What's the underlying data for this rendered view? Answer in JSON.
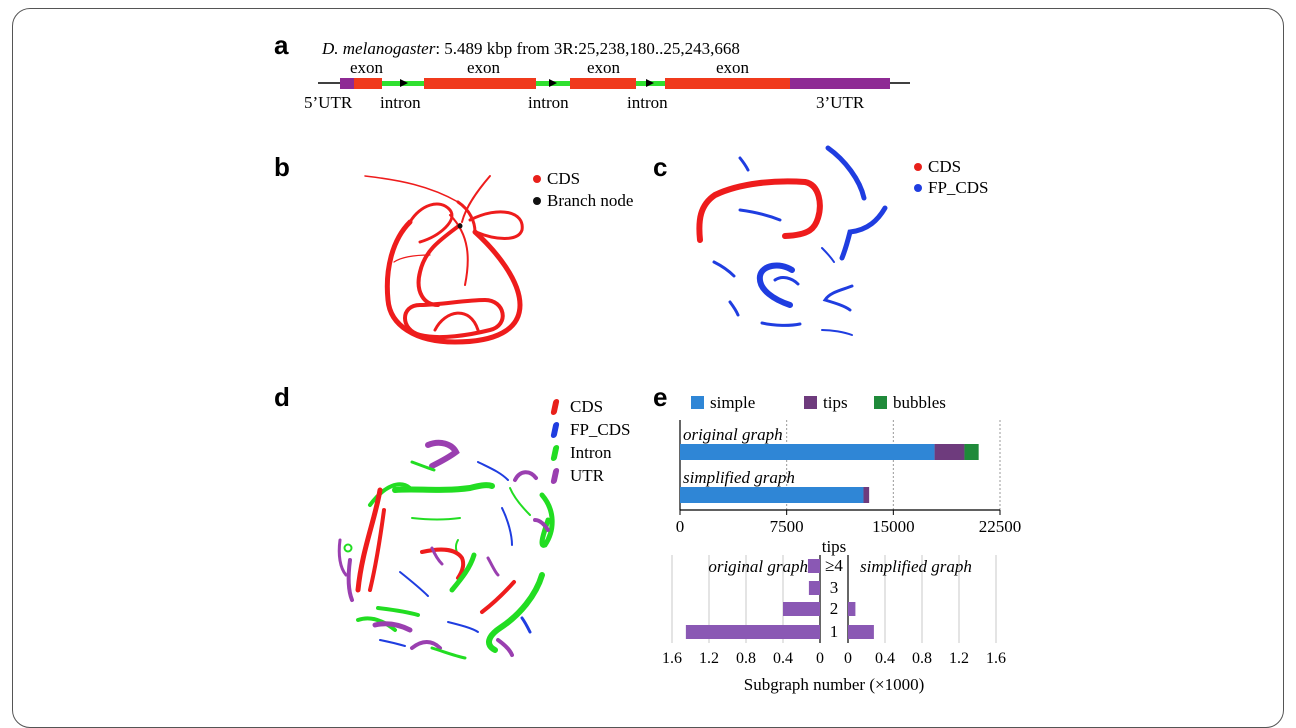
{
  "panels": {
    "a": "a",
    "b": "b",
    "c": "c",
    "d": "d",
    "e": "e"
  },
  "gene": {
    "species": "D. melanogaster",
    "info": ": 5.489 kbp from 3R:25,238,180..25,243,668",
    "exon_label": "exon",
    "intron_label": "intron",
    "utr5_label": "5’UTR",
    "utr3_label": "3’UTR"
  },
  "legend_b": [
    {
      "label": "CDS",
      "color": "#e8201a"
    },
    {
      "label": "Branch node",
      "color": "#111111"
    }
  ],
  "legend_c": [
    {
      "label": "CDS",
      "color": "#e8201a"
    },
    {
      "label": "FP_CDS",
      "color": "#1f3de0"
    }
  ],
  "legend_d": [
    {
      "label": "CDS",
      "color": "#e8201a"
    },
    {
      "label": "FP_CDS",
      "color": "#1f3de0"
    },
    {
      "label": "Intron",
      "color": "#22dd22"
    },
    {
      "label": "UTR",
      "color": "#9a3fb0"
    }
  ],
  "colors": {
    "exon": "#f03a1c",
    "utr": "#8e2a94",
    "intron": "#2fe02f",
    "simple": "#2f86d6",
    "tips": "#6e3b7d",
    "bubbles": "#1f8a3a",
    "tipbar": "#8a58b4"
  },
  "chart_data": [
    {
      "type": "bar",
      "orientation": "horizontal",
      "stacked": true,
      "legend": [
        "simple",
        "tips",
        "bubbles"
      ],
      "categories": [
        "original graph",
        "simplified graph"
      ],
      "series": [
        {
          "name": "simple",
          "values": [
            17900,
            12900
          ]
        },
        {
          "name": "tips",
          "values": [
            2100,
            400
          ]
        },
        {
          "name": "bubbles",
          "values": [
            1000,
            0
          ]
        }
      ],
      "ticks": [
        "0",
        "7500",
        "15000",
        "22500"
      ],
      "xlim": [
        0,
        22500
      ],
      "grid": true
    },
    {
      "type": "bar",
      "orientation": "horizontal",
      "subtitle": "tips",
      "xlabel": "Subgraph number (×1000)",
      "categories": [
        "≥4",
        "3",
        "2",
        "1"
      ],
      "left_title": "original graph",
      "right_title": "simplified graph",
      "series": [
        {
          "name": "original graph",
          "values": [
            0.13,
            0.12,
            0.4,
            1.45
          ]
        },
        {
          "name": "simplified graph",
          "values": [
            0.0,
            0.0,
            0.08,
            0.28
          ]
        }
      ],
      "ticks_left": [
        "1.6",
        "1.2",
        "0.8",
        "0.4",
        "0"
      ],
      "ticks_right": [
        "0",
        "0.4",
        "0.8",
        "1.2",
        "1.6"
      ],
      "xlim": [
        0,
        1.6
      ],
      "grid": true
    }
  ]
}
